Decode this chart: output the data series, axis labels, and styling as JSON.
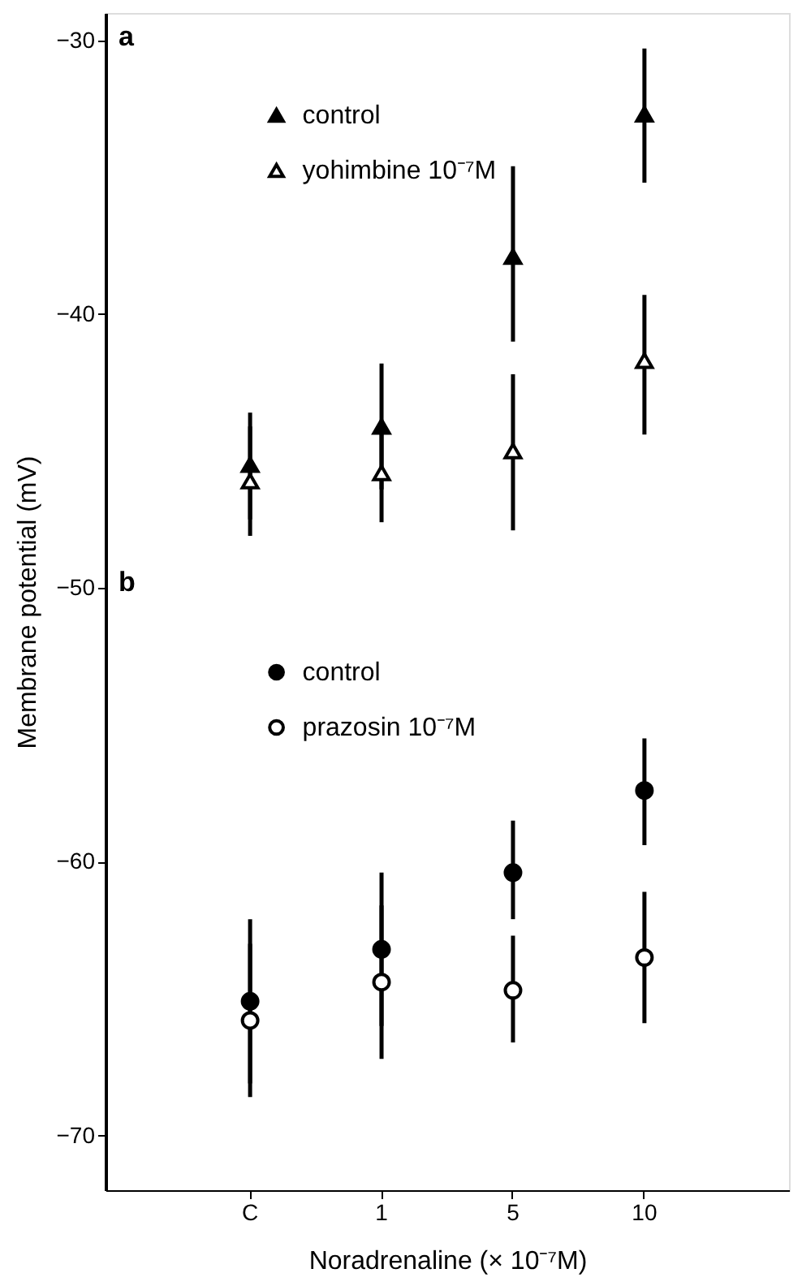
{
  "chart_data": {
    "type": "scatter",
    "xlabel": "Noradrenaline (× 10⁻⁷M)",
    "ylabel": "Membrane potential (mV)",
    "categories": [
      "C",
      "1",
      "5",
      "10"
    ],
    "ylim": [
      -72,
      -29
    ],
    "yticks": [
      -30,
      -40,
      -50,
      -60,
      -70
    ],
    "grid": false,
    "legend": "top left",
    "annotations": [
      "a",
      "b"
    ],
    "series": [
      {
        "name": "control",
        "color": "#000000",
        "marker": "triangle",
        "values": [
          -45.5,
          -44.1,
          -37.9,
          -32.7
        ],
        "errors": [
          [
            -47.5,
            -43.6
          ],
          [
            -46.4,
            -41.8
          ],
          [
            -41.0,
            -34.6
          ],
          [
            -35.2,
            -30.3
          ]
        ]
      },
      {
        "name": "yohimbine 10⁻⁷M",
        "color": "#ffffff",
        "marker": "triangle",
        "values": [
          -46.1,
          -45.8,
          -45.0,
          -41.7
        ],
        "errors": [
          [
            -48.1,
            -44.1
          ],
          [
            -47.6,
            -44.0
          ],
          [
            -47.9,
            -42.2
          ],
          [
            -44.4,
            -39.3
          ]
        ]
      },
      {
        "name": "control",
        "color": "#000000",
        "marker": "circle",
        "values": [
          -65.1,
          -63.2,
          -60.4,
          -57.4
        ],
        "errors": [
          [
            -68.1,
            -62.1
          ],
          [
            -66.0,
            -60.4
          ],
          [
            -62.1,
            -58.5
          ],
          [
            -59.4,
            -55.5
          ]
        ]
      },
      {
        "name": "prazosin 10⁻⁷M",
        "color": "#ffffff",
        "marker": "circle",
        "values": [
          -65.8,
          -64.4,
          -64.7,
          -63.5
        ],
        "errors": [
          [
            -68.6,
            -63.0
          ],
          [
            -67.2,
            -61.6
          ],
          [
            -66.6,
            -62.7
          ],
          [
            -65.9,
            -61.1
          ]
        ]
      }
    ]
  }
}
